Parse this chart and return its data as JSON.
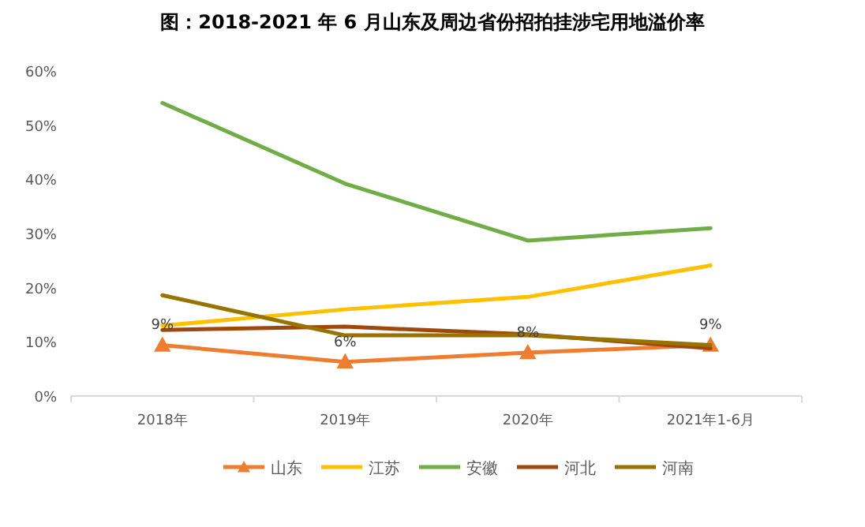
{
  "chart_data": {
    "type": "line",
    "title": "图：2018-2021 年 6 月山东及周边省份招拍挂涉宅用地溢价率",
    "categories": [
      "2018年",
      "2019年",
      "2020年",
      "2021年1-6月"
    ],
    "ylim": [
      0,
      60
    ],
    "yticks": [
      {
        "value": 0,
        "label": "0%"
      },
      {
        "value": 10,
        "label": "10%"
      },
      {
        "value": 20,
        "label": "20%"
      },
      {
        "value": 30,
        "label": "30%"
      },
      {
        "value": 40,
        "label": "40%"
      },
      {
        "value": 50,
        "label": "50%"
      },
      {
        "value": 60,
        "label": "60%"
      }
    ],
    "grid": false,
    "legend": "bottom",
    "series": [
      {
        "name": "山东",
        "color": "#ed7d31",
        "marker": "triangle",
        "values": [
          9.4,
          6.3,
          8.0,
          9.4
        ],
        "value_labels": [
          "9%",
          "6%",
          "8%",
          "9%"
        ]
      },
      {
        "name": "江苏",
        "color": "#ffc000",
        "values": [
          13.0,
          16.0,
          18.3,
          24.1
        ]
      },
      {
        "name": "安徽",
        "color": "#70ad47",
        "values": [
          54.1,
          39.2,
          28.7,
          31.0
        ]
      },
      {
        "name": "河北",
        "color": "#9e480e",
        "values": [
          12.2,
          12.8,
          11.4,
          8.8
        ]
      },
      {
        "name": "河南",
        "color": "#997300",
        "values": [
          18.6,
          11.2,
          11.2,
          9.4
        ]
      }
    ]
  }
}
